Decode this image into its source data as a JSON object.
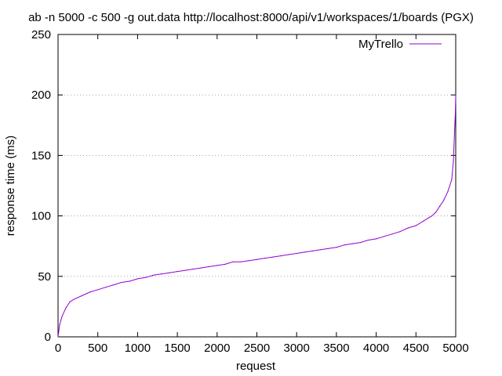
{
  "chart_data": {
    "type": "line",
    "title": "ab -n 5000 -c 500 -g out.data http://localhost:8000/api/v1/workspaces/1/boards (PGX)",
    "xlabel": "request",
    "ylabel": "response time (ms)",
    "xlim": [
      0,
      5000
    ],
    "ylim": [
      0,
      250
    ],
    "xticks": [
      "0",
      "500",
      "1000",
      "1500",
      "2000",
      "2500",
      "3000",
      "3500",
      "4000",
      "4500",
      "5000"
    ],
    "yticks": [
      "0",
      "50",
      "100",
      "150",
      "200",
      "250"
    ],
    "grid": "horizontal dotted",
    "legend_position": "top-right",
    "series": [
      {
        "name": "MyTrello",
        "color": "#9400d3",
        "points": [
          [
            0,
            0
          ],
          [
            20,
            10
          ],
          [
            50,
            17
          ],
          [
            100,
            24
          ],
          [
            150,
            29
          ],
          [
            200,
            31
          ],
          [
            300,
            34
          ],
          [
            400,
            37
          ],
          [
            500,
            39
          ],
          [
            600,
            41
          ],
          [
            700,
            43
          ],
          [
            800,
            45
          ],
          [
            900,
            46
          ],
          [
            1000,
            48
          ],
          [
            1100,
            49
          ],
          [
            1200,
            51
          ],
          [
            1300,
            52
          ],
          [
            1400,
            53
          ],
          [
            1500,
            54
          ],
          [
            1600,
            55
          ],
          [
            1700,
            56
          ],
          [
            1800,
            57
          ],
          [
            1900,
            58
          ],
          [
            2000,
            59
          ],
          [
            2100,
            60
          ],
          [
            2200,
            62
          ],
          [
            2300,
            62
          ],
          [
            2400,
            63
          ],
          [
            2500,
            64
          ],
          [
            2600,
            65
          ],
          [
            2700,
            66
          ],
          [
            2800,
            67
          ],
          [
            2900,
            68
          ],
          [
            3000,
            69
          ],
          [
            3100,
            70
          ],
          [
            3200,
            71
          ],
          [
            3300,
            72
          ],
          [
            3400,
            73
          ],
          [
            3500,
            74
          ],
          [
            3600,
            76
          ],
          [
            3700,
            77
          ],
          [
            3800,
            78
          ],
          [
            3900,
            80
          ],
          [
            4000,
            81
          ],
          [
            4100,
            83
          ],
          [
            4200,
            85
          ],
          [
            4300,
            87
          ],
          [
            4400,
            90
          ],
          [
            4500,
            92
          ],
          [
            4600,
            96
          ],
          [
            4700,
            100
          ],
          [
            4750,
            103
          ],
          [
            4800,
            108
          ],
          [
            4850,
            113
          ],
          [
            4900,
            120
          ],
          [
            4950,
            130
          ],
          [
            4970,
            145
          ],
          [
            4985,
            170
          ],
          [
            4995,
            185
          ],
          [
            5000,
            200
          ]
        ]
      }
    ]
  }
}
